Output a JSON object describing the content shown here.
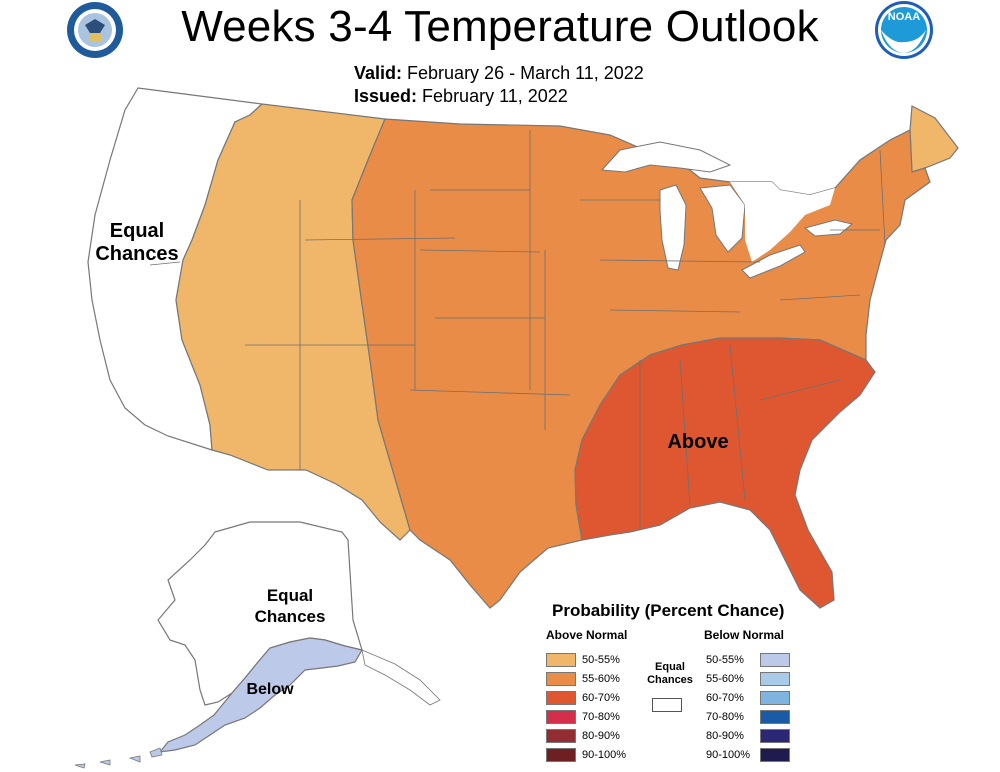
{
  "title": "Weeks 3-4 Temperature Outlook",
  "valid_label": "Valid:",
  "valid_dates": "February 26 - March 11, 2022",
  "issued_label": "Issued:",
  "issued_date": "February 11, 2022",
  "noaa_logo_text": "NOAA",
  "map_labels": {
    "conus_west": "Equal Chances",
    "conus_above": "Above",
    "alaska_main": "Equal Chances",
    "alaska_below": "Below"
  },
  "legend": {
    "title": "Probability (Percent Chance)",
    "above_header": "Above Normal",
    "below_header": "Below Normal",
    "equal_chances": "Equal Chances",
    "above_items": [
      {
        "label": "50-55%",
        "color": "#f0b76b"
      },
      {
        "label": "55-60%",
        "color": "#e88c48"
      },
      {
        "label": "60-70%",
        "color": "#de5730"
      },
      {
        "label": "70-80%",
        "color": "#d32f4c"
      },
      {
        "label": "80-90%",
        "color": "#922e33"
      },
      {
        "label": "90-100%",
        "color": "#6e1f22"
      }
    ],
    "below_items": [
      {
        "label": "50-55%",
        "color": "#bcc9e8"
      },
      {
        "label": "55-60%",
        "color": "#a9cbe9"
      },
      {
        "label": "60-70%",
        "color": "#7fb4e0"
      },
      {
        "label": "70-80%",
        "color": "#1b5aa5"
      },
      {
        "label": "80-90%",
        "color": "#2a2874"
      },
      {
        "label": "90-100%",
        "color": "#1f1b4f"
      }
    ]
  }
}
